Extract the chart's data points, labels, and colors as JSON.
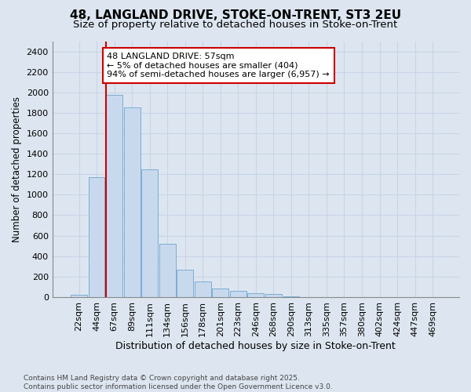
{
  "title1": "48, LANGLAND DRIVE, STOKE-ON-TRENT, ST3 2EU",
  "title2": "Size of property relative to detached houses in Stoke-on-Trent",
  "xlabel": "Distribution of detached houses by size in Stoke-on-Trent",
  "ylabel": "Number of detached properties",
  "bin_labels": [
    "22sqm",
    "44sqm",
    "67sqm",
    "89sqm",
    "111sqm",
    "134sqm",
    "156sqm",
    "178sqm",
    "201sqm",
    "223sqm",
    "246sqm",
    "268sqm",
    "290sqm",
    "313sqm",
    "335sqm",
    "357sqm",
    "380sqm",
    "402sqm",
    "424sqm",
    "447sqm",
    "469sqm"
  ],
  "bar_values": [
    25,
    1175,
    1975,
    1850,
    1245,
    520,
    270,
    150,
    85,
    60,
    35,
    30,
    5,
    2,
    2,
    1,
    0,
    0,
    0,
    0,
    0
  ],
  "bar_color": "#c8d9ee",
  "bar_edge_color": "#7aadd4",
  "vline_color": "#cc0000",
  "vline_bin_index": 2,
  "annotation_text": "48 LANGLAND DRIVE: 57sqm\n← 5% of detached houses are smaller (404)\n94% of semi-detached houses are larger (6,957) →",
  "annotation_box_color": "#ffffff",
  "annotation_box_edge": "#cc0000",
  "grid_color": "#c8d4e8",
  "background_color": "#dde6f0",
  "plot_bg_color": "#dde6f0",
  "ylim": [
    0,
    2500
  ],
  "yticks": [
    0,
    200,
    400,
    600,
    800,
    1000,
    1200,
    1400,
    1600,
    1800,
    2000,
    2200,
    2400
  ],
  "footer": "Contains HM Land Registry data © Crown copyright and database right 2025.\nContains public sector information licensed under the Open Government Licence v3.0.",
  "title1_fontsize": 11,
  "title2_fontsize": 9.5,
  "xlabel_fontsize": 9,
  "ylabel_fontsize": 8.5,
  "tick_fontsize": 8,
  "footer_fontsize": 6.5,
  "annotation_fontsize": 8
}
